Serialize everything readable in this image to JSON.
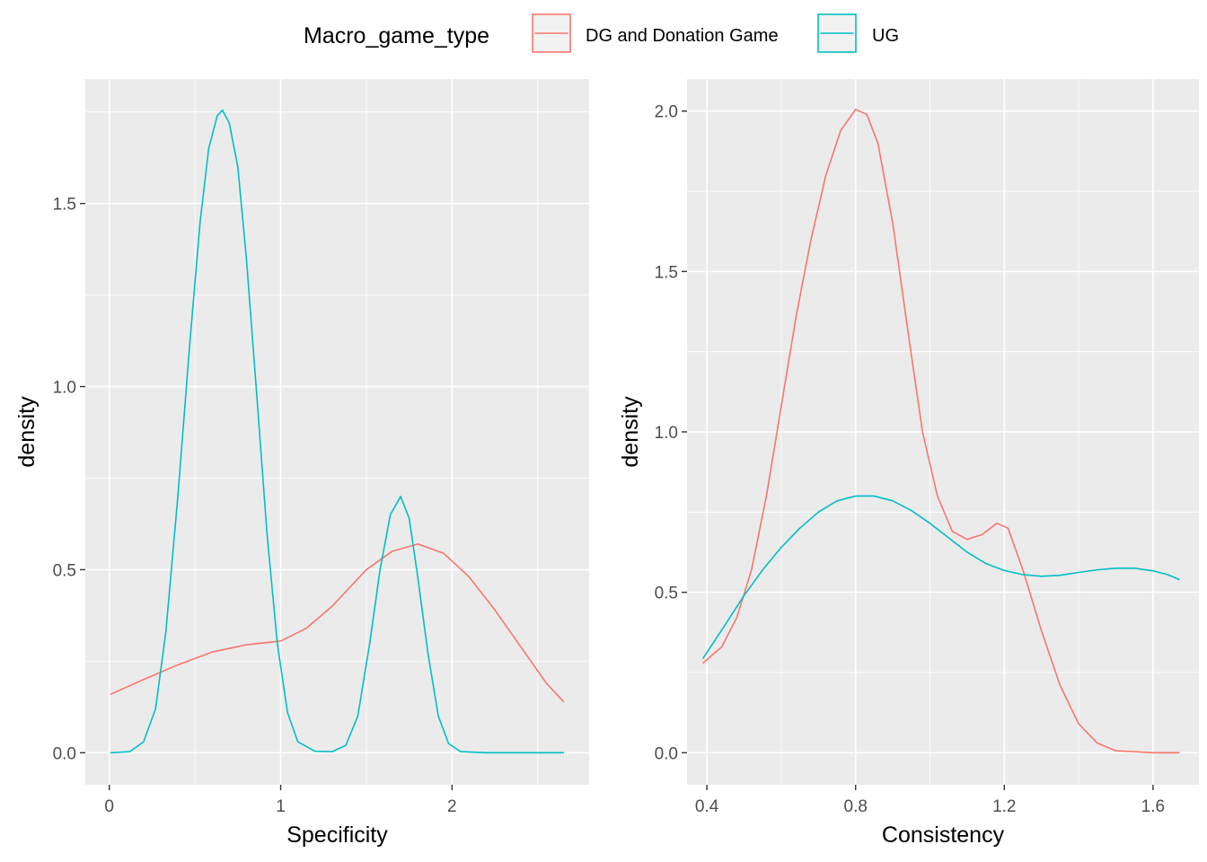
{
  "legend": {
    "title": "Macro_game_type",
    "position": "top",
    "items": [
      {
        "label": "DG and Donation Game",
        "color": "#F8766D"
      },
      {
        "label": "UG",
        "color": "#00BFC4"
      }
    ]
  },
  "chart_data": [
    {
      "type": "line",
      "xlabel": "Specificity",
      "ylabel": "density",
      "xlim": [
        -0.14,
        2.8
      ],
      "ylim": [
        -0.0875,
        1.84
      ],
      "x_ticks": [
        0,
        1,
        2
      ],
      "x_tick_labels": [
        "0",
        "1",
        "2"
      ],
      "y_ticks": [
        0.0,
        0.5,
        1.0,
        1.5
      ],
      "y_tick_labels": [
        "0.0",
        "0.5",
        "1.0",
        "1.5"
      ],
      "grid": true,
      "series": [
        {
          "name": "DG and Donation Game",
          "color": "#F8766D",
          "points": [
            [
              0.01,
              0.16
            ],
            [
              0.2,
              0.2
            ],
            [
              0.4,
              0.24
            ],
            [
              0.6,
              0.275
            ],
            [
              0.8,
              0.295
            ],
            [
              1.0,
              0.305
            ],
            [
              1.15,
              0.34
            ],
            [
              1.3,
              0.4
            ],
            [
              1.5,
              0.5
            ],
            [
              1.65,
              0.55
            ],
            [
              1.8,
              0.57
            ],
            [
              1.95,
              0.545
            ],
            [
              2.1,
              0.48
            ],
            [
              2.25,
              0.39
            ],
            [
              2.4,
              0.29
            ],
            [
              2.55,
              0.19
            ],
            [
              2.65,
              0.14
            ]
          ]
        },
        {
          "name": "UG",
          "color": "#00BFC4",
          "points": [
            [
              0.01,
              0.0
            ],
            [
              0.12,
              0.003
            ],
            [
              0.2,
              0.03
            ],
            [
              0.27,
              0.12
            ],
            [
              0.33,
              0.33
            ],
            [
              0.4,
              0.7
            ],
            [
              0.47,
              1.12
            ],
            [
              0.53,
              1.45
            ],
            [
              0.58,
              1.65
            ],
            [
              0.63,
              1.74
            ],
            [
              0.66,
              1.755
            ],
            [
              0.7,
              1.72
            ],
            [
              0.75,
              1.6
            ],
            [
              0.8,
              1.35
            ],
            [
              0.86,
              0.98
            ],
            [
              0.92,
              0.6
            ],
            [
              0.98,
              0.3
            ],
            [
              1.04,
              0.11
            ],
            [
              1.1,
              0.03
            ],
            [
              1.2,
              0.004
            ],
            [
              1.3,
              0.003
            ],
            [
              1.38,
              0.02
            ],
            [
              1.45,
              0.1
            ],
            [
              1.52,
              0.3
            ],
            [
              1.58,
              0.5
            ],
            [
              1.64,
              0.65
            ],
            [
              1.7,
              0.7
            ],
            [
              1.75,
              0.64
            ],
            [
              1.8,
              0.48
            ],
            [
              1.86,
              0.27
            ],
            [
              1.92,
              0.1
            ],
            [
              1.98,
              0.025
            ],
            [
              2.05,
              0.003
            ],
            [
              2.2,
              0.0
            ],
            [
              2.4,
              0.0
            ],
            [
              2.65,
              0.0
            ]
          ]
        }
      ]
    },
    {
      "type": "line",
      "xlabel": "Consistency",
      "ylabel": "density",
      "xlim": [
        0.3465,
        1.7235
      ],
      "ylim": [
        -0.1,
        2.1
      ],
      "x_ticks": [
        0.4,
        0.8,
        1.2,
        1.6
      ],
      "x_tick_labels": [
        "0.4",
        "0.8",
        "1.2",
        "1.6"
      ],
      "y_ticks": [
        0.0,
        0.5,
        1.0,
        1.5,
        2.0
      ],
      "y_tick_labels": [
        "0.0",
        "0.5",
        "1.0",
        "1.5",
        "2.0"
      ],
      "grid": true,
      "series": [
        {
          "name": "DG and Donation Game",
          "color": "#F8766D",
          "points": [
            [
              0.39,
              0.28
            ],
            [
              0.44,
              0.33
            ],
            [
              0.48,
              0.42
            ],
            [
              0.52,
              0.57
            ],
            [
              0.56,
              0.8
            ],
            [
              0.6,
              1.08
            ],
            [
              0.64,
              1.36
            ],
            [
              0.68,
              1.6
            ],
            [
              0.72,
              1.8
            ],
            [
              0.76,
              1.94
            ],
            [
              0.8,
              2.005
            ],
            [
              0.83,
              1.99
            ],
            [
              0.86,
              1.9
            ],
            [
              0.9,
              1.65
            ],
            [
              0.94,
              1.32
            ],
            [
              0.98,
              1.0
            ],
            [
              1.02,
              0.8
            ],
            [
              1.06,
              0.69
            ],
            [
              1.1,
              0.665
            ],
            [
              1.14,
              0.68
            ],
            [
              1.18,
              0.715
            ],
            [
              1.21,
              0.7
            ],
            [
              1.25,
              0.57
            ],
            [
              1.3,
              0.38
            ],
            [
              1.35,
              0.21
            ],
            [
              1.4,
              0.09
            ],
            [
              1.45,
              0.03
            ],
            [
              1.5,
              0.006
            ],
            [
              1.6,
              0.0
            ],
            [
              1.67,
              0.0
            ]
          ]
        },
        {
          "name": "UG",
          "color": "#00BFC4",
          "points": [
            [
              0.39,
              0.295
            ],
            [
              0.45,
              0.4
            ],
            [
              0.5,
              0.49
            ],
            [
              0.55,
              0.57
            ],
            [
              0.6,
              0.64
            ],
            [
              0.65,
              0.7
            ],
            [
              0.7,
              0.75
            ],
            [
              0.75,
              0.785
            ],
            [
              0.8,
              0.8
            ],
            [
              0.85,
              0.8
            ],
            [
              0.9,
              0.785
            ],
            [
              0.95,
              0.755
            ],
            [
              1.0,
              0.715
            ],
            [
              1.05,
              0.67
            ],
            [
              1.1,
              0.625
            ],
            [
              1.15,
              0.59
            ],
            [
              1.2,
              0.568
            ],
            [
              1.25,
              0.555
            ],
            [
              1.3,
              0.55
            ],
            [
              1.35,
              0.553
            ],
            [
              1.4,
              0.562
            ],
            [
              1.45,
              0.57
            ],
            [
              1.5,
              0.575
            ],
            [
              1.55,
              0.575
            ],
            [
              1.6,
              0.567
            ],
            [
              1.64,
              0.555
            ],
            [
              1.67,
              0.54
            ]
          ]
        }
      ]
    }
  ]
}
